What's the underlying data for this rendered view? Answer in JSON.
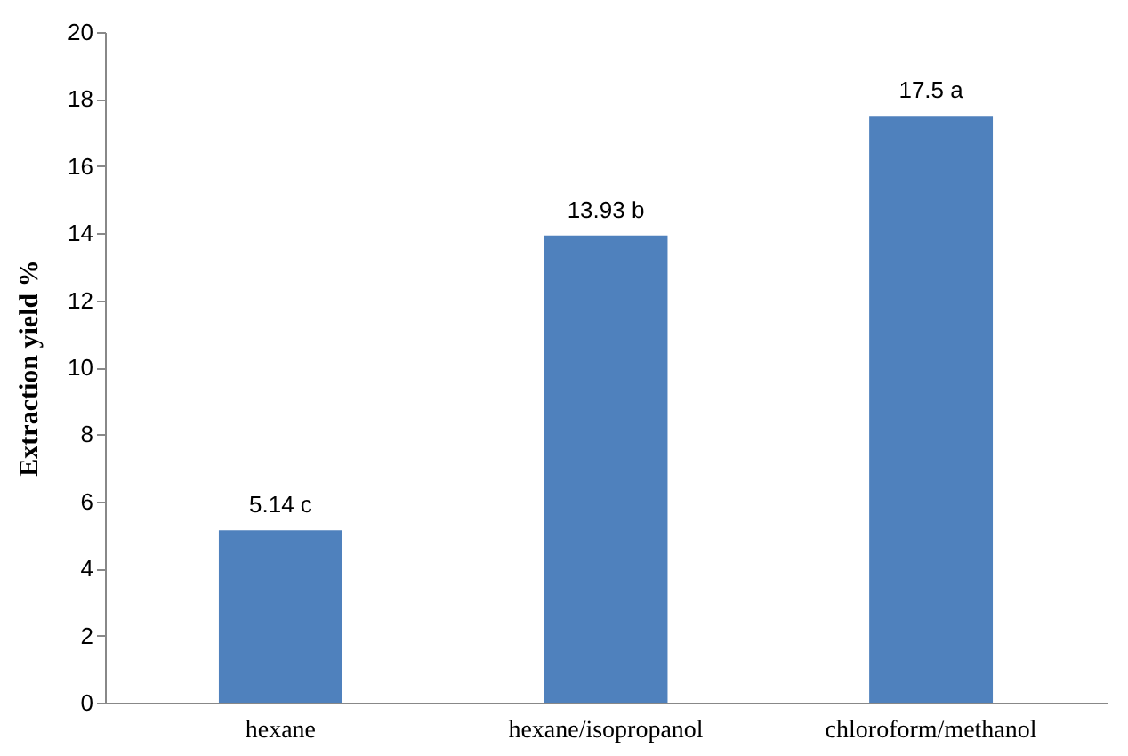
{
  "chart_data": {
    "type": "bar",
    "ylabel": "Extraction yield %",
    "categories": [
      "hexane",
      "hexane/isopropanol",
      "chloroform/methanol"
    ],
    "values": [
      5.14,
      13.93,
      17.5
    ],
    "value_labels": [
      "5.14 c",
      "13.93 b",
      "17.5 a"
    ],
    "color": "#4f81bd",
    "ylim": [
      0,
      20
    ],
    "yticks": [
      0,
      2,
      4,
      6,
      8,
      10,
      12,
      14,
      16,
      18,
      20
    ],
    "grid": false
  }
}
